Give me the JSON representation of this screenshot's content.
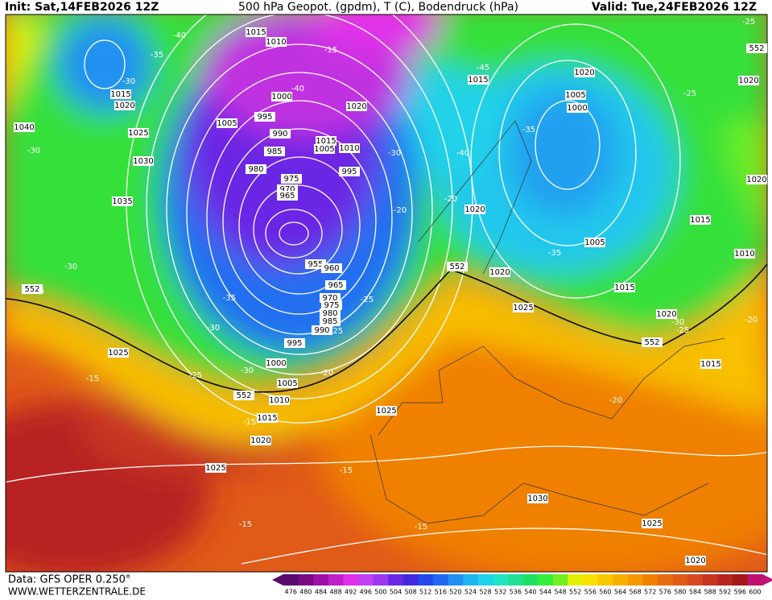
{
  "header": {
    "init": "Init: Sat,14FEB2026 12Z",
    "title": "500 hPa Geopot. (gpdm), T (C), Bodendruck (hPa)",
    "valid": "Valid: Tue,24FEB2026 12Z"
  },
  "footer": {
    "data_source": "Data: GFS OPER 0.250°",
    "website": "WWW.WETTERZENTRALE.DE"
  },
  "colorbar": {
    "labels": [
      476,
      480,
      484,
      488,
      492,
      496,
      500,
      504,
      508,
      512,
      516,
      520,
      524,
      528,
      532,
      536,
      540,
      544,
      548,
      552,
      556,
      560,
      564,
      568,
      572,
      576,
      580,
      584,
      588,
      592,
      596,
      600
    ],
    "colors": [
      "#5a0a6a",
      "#7a0a84",
      "#9c10a8",
      "#c020c8",
      "#e030e8",
      "#c040f4",
      "#9a38f0",
      "#6a28e4",
      "#4028e0",
      "#2448ec",
      "#2068f0",
      "#2090f2",
      "#20b4f0",
      "#20d2e8",
      "#20e4c4",
      "#20e094",
      "#20e064",
      "#34ee3a",
      "#70f020",
      "#e4f000",
      "#f8e000",
      "#f8c800",
      "#f8b000",
      "#f89800",
      "#f08000",
      "#e86c10",
      "#e05a18",
      "#d84820",
      "#c83420",
      "#b82420",
      "#a41818",
      "#c01070"
    ]
  },
  "pressure_labels": [
    1015,
    1010,
    1000,
    1005,
    995,
    990,
    985,
    980,
    975,
    970,
    965,
    955,
    960,
    965,
    970,
    975,
    980,
    985,
    990,
    995,
    1000,
    1005,
    1010,
    1015,
    1020,
    1025,
    1025,
    1030,
    1035,
    1040,
    1015,
    1020,
    1025,
    1015,
    1005,
    1010,
    995,
    1020,
    1015,
    1020,
    1005,
    1000,
    1020,
    1020,
    1025,
    1015,
    1005,
    1015,
    1020,
    1020,
    1010,
    1020,
    1015,
    1025,
    1030,
    1025,
    1020
  ],
  "temperature_labels": [
    -40,
    -35,
    -30,
    -30,
    -15,
    -40,
    -35,
    -30,
    -25,
    -25,
    -40,
    -20,
    -20,
    -30,
    -25,
    -35,
    -30,
    -25,
    -25,
    -25,
    -30,
    -20,
    -15,
    -15,
    -15,
    -15,
    -15,
    -20,
    -30,
    -25,
    -20,
    -35,
    -45
  ],
  "height_labels": [
    552,
    552,
    552,
    552,
    552
  ]
}
